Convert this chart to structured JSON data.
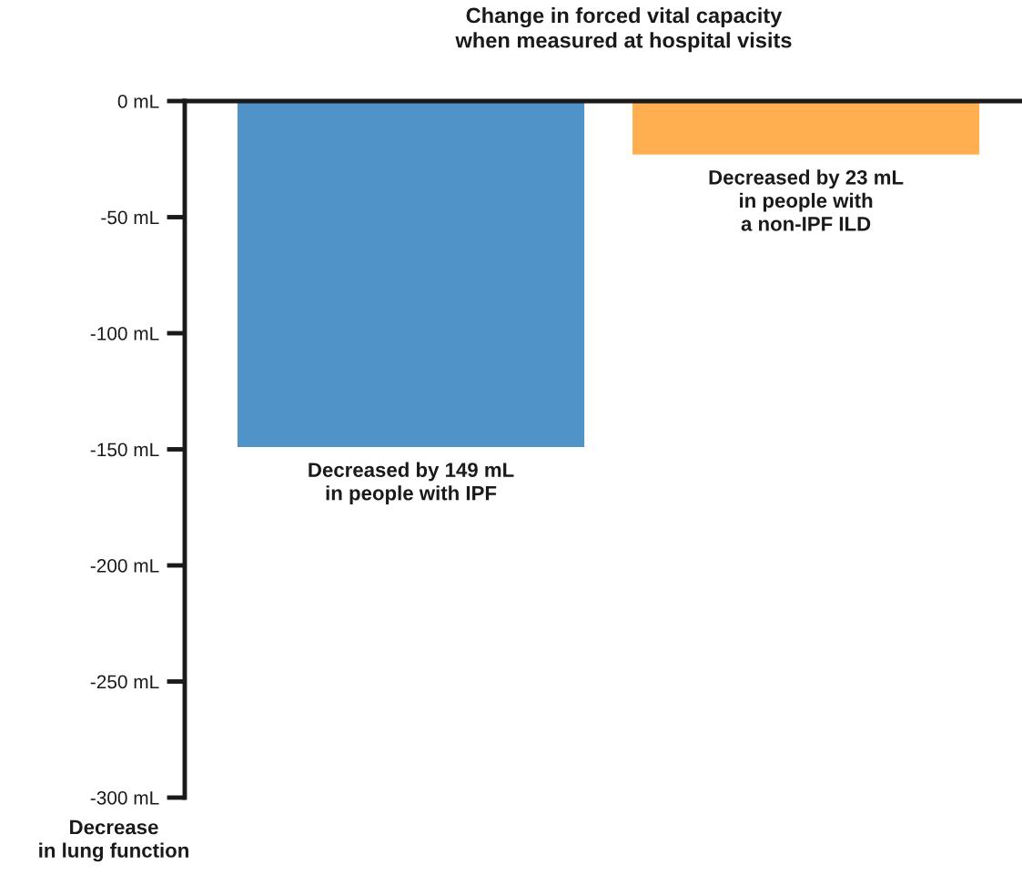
{
  "chart_data": {
    "type": "bar",
    "title": "Change in forced vital capacity\nwhen measured at hospital visits",
    "ylabel": "Decrease\nin lung function",
    "categories": [
      null,
      null
    ],
    "values": [
      -149,
      -23
    ],
    "colors": [
      "#4f93c9",
      "#ffaf4f"
    ],
    "value_labels": [
      "Decreased by 149 mL\nin people with IPF",
      "Decreased by 23 mL\nin people with\na non-IPF ILD"
    ],
    "ylim": [
      -300,
      0
    ],
    "yticks": [
      {
        "value": 0,
        "label": "0 mL"
      },
      {
        "value": -50,
        "label": "-50 mL"
      },
      {
        "value": -100,
        "label": "-100 mL"
      },
      {
        "value": -150,
        "label": "-150 mL"
      },
      {
        "value": -200,
        "label": "-200 mL"
      },
      {
        "value": -250,
        "label": "-250 mL"
      },
      {
        "value": -300,
        "label": "-300 mL"
      }
    ],
    "grid": false,
    "legend": false
  }
}
